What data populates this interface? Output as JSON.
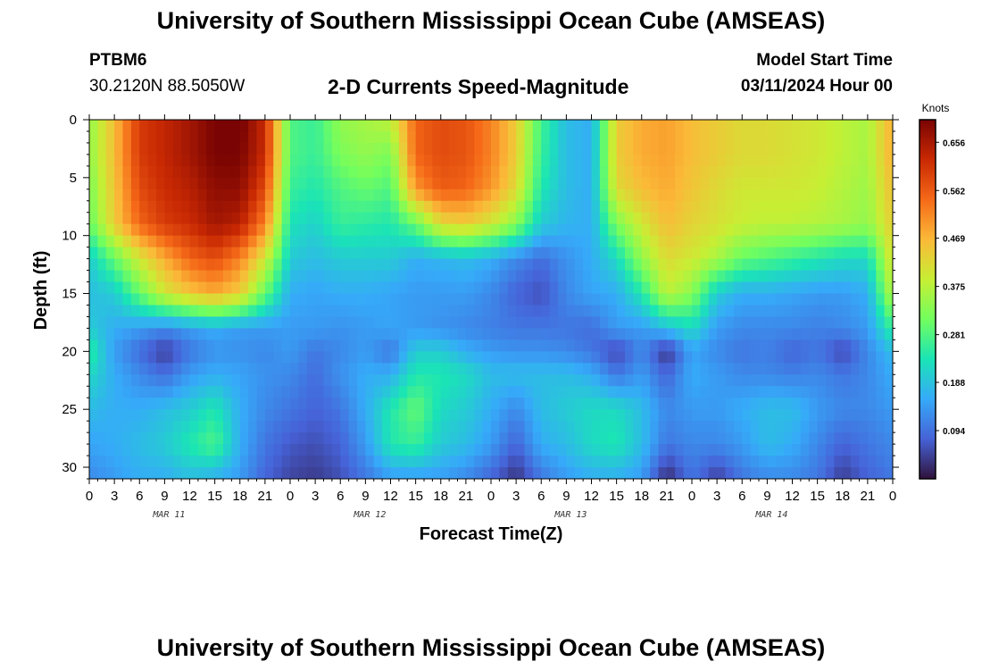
{
  "page": {
    "title": "University of Southern Mississippi Ocean Cube (AMSEAS)",
    "footer_title": "University of Southern Mississippi Ocean Cube (AMSEAS)",
    "station_id": "PTBM6",
    "station_coords": "30.2120N  88.5050W",
    "subtitle": "2-D Currents Speed-Magnitude",
    "model_start_label": "Model Start Time",
    "model_start_value": "03/11/2024 Hour 00"
  },
  "chart_data": {
    "type": "heatmap",
    "title": "2-D Currents Speed-Magnitude",
    "xlabel": "Forecast Time(Z)",
    "ylabel": "Depth (ft)",
    "x_tick_labels": [
      "0",
      "3",
      "6",
      "9",
      "12",
      "15",
      "18",
      "21",
      "0",
      "3",
      "6",
      "9",
      "12",
      "15",
      "18",
      "21",
      "0",
      "3",
      "6",
      "9",
      "12",
      "15",
      "18",
      "21",
      "0",
      "3",
      "6",
      "9",
      "12",
      "15",
      "18",
      "21",
      "0"
    ],
    "x_tick_hours": [
      0,
      3,
      6,
      9,
      12,
      15,
      18,
      21,
      24,
      27,
      30,
      33,
      36,
      39,
      42,
      45,
      48,
      51,
      54,
      57,
      60,
      63,
      66,
      69,
      72,
      75,
      78,
      81,
      84,
      87,
      90,
      93,
      96
    ],
    "date_labels": [
      {
        "label": "MAR 11",
        "hour": 9
      },
      {
        "label": "MAR 12",
        "hour": 33
      },
      {
        "label": "MAR 13",
        "hour": 57
      },
      {
        "label": "MAR 14",
        "hour": 81
      }
    ],
    "xlim": [
      0,
      96
    ],
    "y_tick_labels": [
      "0",
      "5",
      "10",
      "15",
      "20",
      "25",
      "30"
    ],
    "y_tick_values": [
      0,
      5,
      10,
      15,
      20,
      25,
      30
    ],
    "ylim": [
      0,
      31
    ],
    "colorbar": {
      "units": "Knots",
      "min": 0.0,
      "max": 0.7,
      "tick_labels": [
        "0.094",
        "0.188",
        "0.281",
        "0.375",
        "0.469",
        "0.562",
        "0.656"
      ],
      "tick_values": [
        0.094,
        0.188,
        0.281,
        0.375,
        0.469,
        0.562,
        0.656
      ],
      "colors": [
        "#30123b",
        "#4662d7",
        "#36aaf9",
        "#1ae4b6",
        "#72fe5e",
        "#c7ef34",
        "#fbb938",
        "#f56918",
        "#c92903",
        "#7a0403"
      ]
    },
    "speed_grid": {
      "depths_ft": [
        0,
        3,
        6,
        9,
        12,
        15,
        18,
        20,
        22,
        25,
        28,
        31
      ],
      "hours": [
        0,
        3,
        6,
        9,
        12,
        15,
        18,
        21,
        24,
        27,
        30,
        33,
        36,
        39,
        42,
        45,
        48,
        51,
        54,
        57,
        60,
        63,
        66,
        69,
        72,
        75,
        78,
        81,
        84,
        87,
        90,
        93,
        96
      ],
      "values_knots": [
        [
          0.34,
          0.46,
          0.6,
          0.63,
          0.66,
          0.7,
          0.71,
          0.62,
          0.28,
          0.26,
          0.34,
          0.36,
          0.38,
          0.55,
          0.58,
          0.57,
          0.52,
          0.44,
          0.27,
          0.18,
          0.16,
          0.44,
          0.48,
          0.49,
          0.46,
          0.44,
          0.42,
          0.42,
          0.41,
          0.4,
          0.38,
          0.36,
          0.48
        ],
        [
          0.34,
          0.46,
          0.6,
          0.63,
          0.66,
          0.7,
          0.7,
          0.62,
          0.28,
          0.26,
          0.32,
          0.34,
          0.32,
          0.55,
          0.58,
          0.57,
          0.52,
          0.44,
          0.26,
          0.18,
          0.16,
          0.44,
          0.48,
          0.49,
          0.46,
          0.44,
          0.42,
          0.42,
          0.41,
          0.4,
          0.38,
          0.36,
          0.48
        ],
        [
          0.32,
          0.45,
          0.58,
          0.62,
          0.64,
          0.68,
          0.68,
          0.58,
          0.26,
          0.24,
          0.28,
          0.3,
          0.28,
          0.5,
          0.56,
          0.55,
          0.5,
          0.42,
          0.24,
          0.18,
          0.16,
          0.42,
          0.46,
          0.48,
          0.45,
          0.42,
          0.4,
          0.4,
          0.4,
          0.39,
          0.37,
          0.35,
          0.46
        ],
        [
          0.3,
          0.44,
          0.55,
          0.6,
          0.62,
          0.66,
          0.64,
          0.52,
          0.23,
          0.21,
          0.26,
          0.25,
          0.24,
          0.3,
          0.42,
          0.44,
          0.4,
          0.33,
          0.2,
          0.17,
          0.16,
          0.32,
          0.4,
          0.46,
          0.43,
          0.41,
          0.39,
          0.38,
          0.38,
          0.37,
          0.36,
          0.34,
          0.44
        ],
        [
          0.2,
          0.3,
          0.4,
          0.48,
          0.55,
          0.58,
          0.52,
          0.4,
          0.2,
          0.18,
          0.2,
          0.2,
          0.2,
          0.16,
          0.17,
          0.18,
          0.16,
          0.12,
          0.09,
          0.13,
          0.16,
          0.22,
          0.34,
          0.42,
          0.4,
          0.36,
          0.3,
          0.28,
          0.26,
          0.24,
          0.22,
          0.22,
          0.42
        ],
        [
          0.18,
          0.2,
          0.3,
          0.4,
          0.45,
          0.48,
          0.44,
          0.3,
          0.16,
          0.15,
          0.16,
          0.16,
          0.15,
          0.14,
          0.14,
          0.14,
          0.12,
          0.08,
          0.06,
          0.12,
          0.15,
          0.16,
          0.24,
          0.38,
          0.33,
          0.2,
          0.16,
          0.16,
          0.15,
          0.14,
          0.14,
          0.16,
          0.38
        ],
        [
          0.2,
          0.16,
          0.14,
          0.12,
          0.14,
          0.16,
          0.14,
          0.14,
          0.14,
          0.14,
          0.13,
          0.14,
          0.15,
          0.14,
          0.13,
          0.12,
          0.11,
          0.1,
          0.1,
          0.1,
          0.09,
          0.14,
          0.14,
          0.18,
          0.22,
          0.14,
          0.12,
          0.12,
          0.12,
          0.11,
          0.12,
          0.14,
          0.26
        ],
        [
          0.26,
          0.14,
          0.09,
          0.04,
          0.1,
          0.13,
          0.13,
          0.12,
          0.14,
          0.1,
          0.12,
          0.14,
          0.1,
          0.2,
          0.2,
          0.16,
          0.14,
          0.13,
          0.13,
          0.12,
          0.1,
          0.05,
          0.12,
          0.03,
          0.15,
          0.12,
          0.1,
          0.11,
          0.08,
          0.1,
          0.05,
          0.12,
          0.18
        ],
        [
          0.22,
          0.16,
          0.12,
          0.09,
          0.14,
          0.16,
          0.15,
          0.13,
          0.12,
          0.09,
          0.13,
          0.16,
          0.16,
          0.24,
          0.24,
          0.22,
          0.18,
          0.18,
          0.18,
          0.18,
          0.16,
          0.1,
          0.14,
          0.08,
          0.16,
          0.14,
          0.12,
          0.12,
          0.11,
          0.12,
          0.1,
          0.12,
          0.16
        ],
        [
          0.18,
          0.16,
          0.16,
          0.18,
          0.2,
          0.24,
          0.16,
          0.12,
          0.1,
          0.08,
          0.1,
          0.16,
          0.24,
          0.3,
          0.22,
          0.2,
          0.16,
          0.12,
          0.18,
          0.2,
          0.22,
          0.22,
          0.18,
          0.12,
          0.14,
          0.14,
          0.16,
          0.18,
          0.18,
          0.14,
          0.12,
          0.12,
          0.14
        ],
        [
          0.15,
          0.16,
          0.18,
          0.2,
          0.24,
          0.28,
          0.16,
          0.1,
          0.07,
          0.06,
          0.08,
          0.14,
          0.24,
          0.26,
          0.2,
          0.18,
          0.14,
          0.08,
          0.16,
          0.18,
          0.22,
          0.24,
          0.18,
          0.1,
          0.12,
          0.12,
          0.14,
          0.18,
          0.16,
          0.12,
          0.08,
          0.1,
          0.12
        ],
        [
          0.12,
          0.14,
          0.16,
          0.16,
          0.18,
          0.16,
          0.14,
          0.08,
          0.05,
          0.04,
          0.06,
          0.1,
          0.14,
          0.14,
          0.14,
          0.12,
          0.08,
          0.03,
          0.1,
          0.14,
          0.16,
          0.16,
          0.14,
          0.02,
          0.1,
          0.04,
          0.1,
          0.12,
          0.12,
          0.1,
          0.04,
          0.08,
          0.1
        ]
      ]
    }
  }
}
